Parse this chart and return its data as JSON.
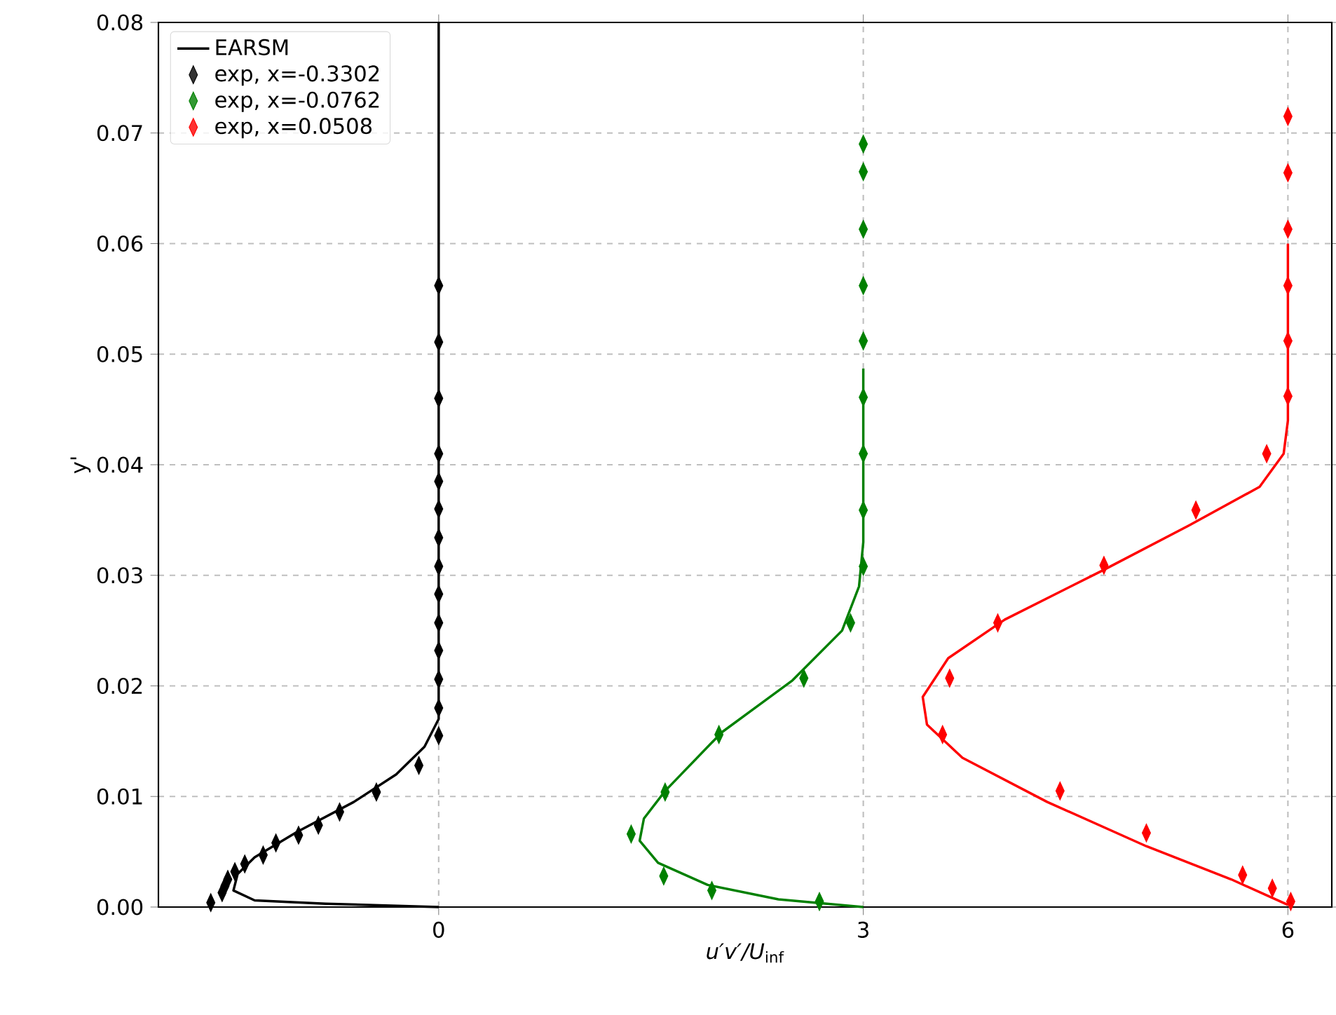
{
  "chart_data": {
    "type": "line",
    "xlabel": "*u′v′/U*$_{inf}$",
    "ylabel": "y'",
    "xlim": [
      -1.98,
      6.31
    ],
    "ylim": [
      0,
      0.08
    ],
    "xticks": [
      0,
      3,
      6
    ],
    "yticks": [
      {
        "value": 0,
        "label": "0.00"
      },
      {
        "value": 0.01,
        "label": "0.01"
      },
      {
        "value": 0.02,
        "label": "0.02"
      },
      {
        "value": 0.03,
        "label": "0.03"
      },
      {
        "value": 0.04,
        "label": "0.04"
      },
      {
        "value": 0.05,
        "label": "0.05"
      },
      {
        "value": 0.06,
        "label": "0.06"
      },
      {
        "value": 0.07,
        "label": "0.07"
      },
      {
        "value": 0.08,
        "label": "0.08"
      }
    ],
    "grid": true,
    "legend": "top left",
    "line_style": "solid",
    "series": [
      {
        "name": "EARSM",
        "color": "#000000",
        "x": [
          0,
          0,
          -0.1,
          -0.3,
          -0.6,
          -1.0,
          -1.3,
          -1.42,
          -1.45,
          -1.3,
          -0.8,
          0
        ],
        "values": [
          0.08,
          0.017,
          0.0145,
          0.012,
          0.0095,
          0.0068,
          0.0045,
          0.003,
          0.0015,
          0.0006,
          0.0003,
          0.0
        ]
      },
      {
        "color": "#008000",
        "x": [
          3,
          3,
          2.97,
          2.85,
          2.5,
          2.0,
          1.6,
          1.45,
          1.42,
          1.55,
          1.9,
          2.4,
          3
        ],
        "values": [
          0.0487,
          0.033,
          0.029,
          0.025,
          0.0205,
          0.0158,
          0.0105,
          0.008,
          0.006,
          0.004,
          0.002,
          0.0007,
          0.0
        ]
      },
      {
        "color": "#ff0000",
        "x": [
          6,
          6,
          5.97,
          5.8,
          5.3,
          4.7,
          4.0,
          3.6,
          3.42,
          3.45,
          3.7,
          4.3,
          5.0,
          5.6,
          6
        ],
        "values": [
          0.06,
          0.044,
          0.041,
          0.038,
          0.0345,
          0.0305,
          0.026,
          0.0225,
          0.019,
          0.0165,
          0.0135,
          0.0095,
          0.0055,
          0.0025,
          0.0002
        ]
      },
      {
        "type": "scatter",
        "marker": "diamond",
        "name": "exp, x=-0.3302",
        "color": "#000000",
        "x": [
          0,
          0,
          0,
          0,
          0,
          0,
          0,
          0,
          0,
          0,
          0,
          0,
          0,
          0,
          -0.14,
          -0.44,
          -0.7,
          -0.85,
          -0.99,
          -1.15,
          -1.24,
          -1.37,
          -1.44,
          -1.49,
          -1.51,
          -1.53,
          -1.61
        ],
        "values": [
          0.0562,
          0.0511,
          0.046,
          0.041,
          0.0385,
          0.036,
          0.0334,
          0.0308,
          0.0283,
          0.0257,
          0.0232,
          0.0206,
          0.018,
          0.0155,
          0.0128,
          0.0104,
          0.0086,
          0.0074,
          0.0065,
          0.0058,
          0.0047,
          0.0039,
          0.0032,
          0.0025,
          0.0019,
          0.0013,
          0.0004
        ]
      },
      {
        "type": "scatter",
        "marker": "diamond",
        "name": "exp, x=-0.0762",
        "color": "#008000",
        "x": [
          3,
          3,
          3,
          3,
          3,
          3,
          3,
          3,
          3,
          2.91,
          2.58,
          1.98,
          1.6,
          1.36,
          1.59,
          1.93,
          2.69
        ],
        "values": [
          0.069,
          0.0665,
          0.0613,
          0.0562,
          0.0512,
          0.0461,
          0.041,
          0.0359,
          0.0308,
          0.0257,
          0.0207,
          0.0156,
          0.0104,
          0.0066,
          0.0028,
          0.0015,
          0.0005
        ]
      },
      {
        "type": "scatter",
        "marker": "diamond",
        "name": "exp, x=0.0508",
        "color": "#ff0000",
        "x": [
          6,
          6,
          6,
          6,
          6,
          6,
          5.85,
          5.35,
          4.7,
          3.95,
          3.61,
          3.56,
          4.39,
          5.0,
          5.68,
          5.89,
          6.02
        ],
        "values": [
          0.0715,
          0.0664,
          0.0613,
          0.0562,
          0.0512,
          0.0462,
          0.041,
          0.0359,
          0.0309,
          0.0257,
          0.0207,
          0.0156,
          0.0105,
          0.0067,
          0.0029,
          0.0017,
          0.0005
        ]
      }
    ]
  }
}
